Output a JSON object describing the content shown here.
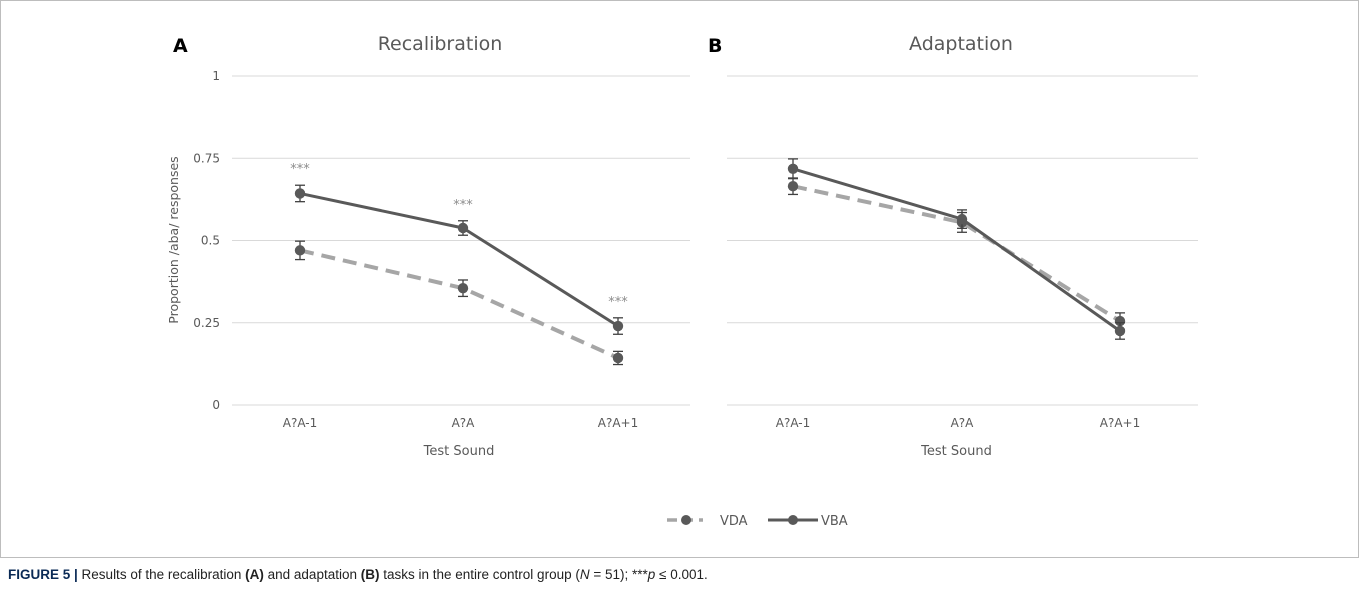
{
  "chart_data": [
    {
      "type": "line",
      "panel": "A",
      "title": "Recalibration",
      "xlabel": "Test Sound",
      "ylabel": "Proportion /aba/ responses",
      "categories": [
        "A?A-1",
        "A?A",
        "A?A+1"
      ],
      "ylim": [
        0,
        1
      ],
      "yticks": [
        "0",
        "0.25",
        "0.5",
        "0.75",
        "1"
      ],
      "grid": true,
      "series": [
        {
          "name": "VDA",
          "values": [
            0.47,
            0.355,
            0.143
          ],
          "errors": [
            0.028,
            0.025,
            0.02
          ],
          "color": "#a6a6a6",
          "dash": true
        },
        {
          "name": "VBA",
          "values": [
            0.643,
            0.538,
            0.24
          ],
          "errors": [
            0.025,
            0.022,
            0.025
          ],
          "color": "#595959",
          "dash": false
        }
      ],
      "annotations": [
        "***",
        "***",
        "***"
      ]
    },
    {
      "type": "line",
      "panel": "B",
      "title": "Adaptation",
      "xlabel": "Test Sound",
      "ylabel": "",
      "categories": [
        "A?A-1",
        "A?A",
        "A?A+1"
      ],
      "ylim": [
        0,
        1
      ],
      "grid": true,
      "series": [
        {
          "name": "VDA",
          "values": [
            0.665,
            0.555,
            0.255
          ],
          "errors": [
            0.025,
            0.03,
            0.025
          ],
          "color": "#a6a6a6",
          "dash": true
        },
        {
          "name": "VBA",
          "values": [
            0.718,
            0.565,
            0.225
          ],
          "errors": [
            0.03,
            0.028,
            0.025
          ],
          "color": "#595959",
          "dash": false
        }
      ],
      "annotations": []
    }
  ],
  "legend": {
    "items": [
      "VDA",
      "VBA"
    ],
    "position": "bottom"
  },
  "caption": {
    "label": "FIGURE 5 |",
    "text1": " Results of the recalibration ",
    "a": "(A)",
    "text2": " and adaptation ",
    "b": "(B)",
    "text3": " tasks in the entire control group (",
    "n_italic": "N",
    "text4": " = 51); ***",
    "p_italic": "p",
    "text5": " ≤ 0.001."
  },
  "colors": {
    "vba": "#595959",
    "vda": "#a6a6a6",
    "grid": "#d9d9d9",
    "text": "#595959",
    "star": "#8c8c8c"
  }
}
